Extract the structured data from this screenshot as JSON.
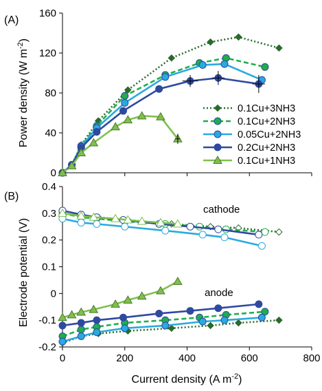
{
  "colors": {
    "s1": "#2a6a2c",
    "s2": "#1fae4b",
    "s3": "#29a9e0",
    "s4": "#2e4aa0",
    "s5": "#7fbf4d"
  },
  "chart_data": [
    {
      "type": "line",
      "panel_label": "(A)",
      "ylabel": "Power density (W m-2)",
      "ylabel_main": "Power density (W m",
      "ylabel_sup": "-2",
      "ylabel_close": ")",
      "xlim": [
        0,
        800
      ],
      "ylim": [
        0,
        160
      ],
      "yticks": [
        0,
        40,
        80,
        120,
        160
      ],
      "legend": {
        "placement": "bottom-right"
      },
      "series": [
        {
          "name": "0.1Cu+3NH3",
          "color_key": "s1",
          "marker": "diamond",
          "line": "dotted",
          "x": [
            0,
            30,
            60,
            115,
            210,
            350,
            475,
            565,
            695
          ],
          "y": [
            0,
            8,
            28,
            52,
            83,
            115,
            131,
            136,
            125
          ]
        },
        {
          "name": "0.1Cu+2NH3",
          "color_key": "s2",
          "marker": "circle",
          "line": "dashed",
          "x": [
            0,
            30,
            60,
            110,
            200,
            330,
            440,
            525,
            650
          ],
          "y": [
            0,
            8,
            27,
            47,
            77,
            98,
            110,
            115,
            106
          ]
        },
        {
          "name": "0.05Cu+2NH3",
          "color_key": "s3",
          "marker": "circle",
          "line": "solid",
          "x": [
            0,
            30,
            60,
            110,
            200,
            330,
            450,
            520,
            640
          ],
          "y": [
            0,
            8,
            26,
            45,
            70,
            96,
            108,
            109,
            93
          ]
        },
        {
          "name": "0.2Cu+2NH3",
          "color_key": "s4",
          "marker": "circle",
          "line": "solid",
          "x": [
            0,
            30,
            60,
            110,
            195,
            310,
            410,
            500,
            630
          ],
          "y": [
            0,
            8,
            25,
            41,
            62,
            84,
            92,
            95,
            89
          ]
        },
        {
          "name": "0.1Cu+1NH3",
          "color_key": "s5",
          "marker": "triangle",
          "line": "solid",
          "x": [
            0,
            30,
            60,
            100,
            170,
            210,
            255,
            315,
            370
          ],
          "y": [
            0,
            7,
            20,
            30,
            46,
            53,
            57,
            56,
            34
          ]
        }
      ]
    },
    {
      "type": "line",
      "panel_label": "(B)",
      "ylabel": "Electrode potential (V)",
      "xlabel": "Current density (A m-2)",
      "xlabel_main": "Current density (A m",
      "xlabel_sup": "-2",
      "xlabel_close": ")",
      "xlim": [
        0,
        800
      ],
      "ylim": [
        -0.2,
        0.4
      ],
      "xticks": [
        0,
        200,
        400,
        600,
        800
      ],
      "yticks": [
        -0.2,
        -0.1,
        0,
        0.1,
        0.2,
        0.3,
        0.4
      ],
      "ytick_labels": [
        "-0.2",
        "-0.1",
        "0",
        "0.1",
        "0.2",
        "0.3",
        "0.4"
      ],
      "annotations": {
        "cathode": "cathode",
        "anode": "anode"
      },
      "cathode_series": [
        {
          "color_key": "s1",
          "marker": "diamond",
          "line": "dotted",
          "x": [
            0,
            60,
            115,
            210,
            350,
            475,
            565,
            695
          ],
          "y": [
            0.3,
            0.29,
            0.285,
            0.275,
            0.26,
            0.25,
            0.245,
            0.23
          ]
        },
        {
          "color_key": "s2",
          "marker": "circle",
          "line": "dashed",
          "x": [
            0,
            60,
            110,
            200,
            330,
            440,
            525,
            650
          ],
          "y": [
            0.3,
            0.285,
            0.28,
            0.27,
            0.26,
            0.25,
            0.24,
            0.23
          ]
        },
        {
          "color_key": "s3",
          "marker": "circle",
          "line": "solid",
          "x": [
            0,
            60,
            110,
            200,
            330,
            450,
            520,
            640
          ],
          "y": [
            0.28,
            0.265,
            0.26,
            0.25,
            0.235,
            0.22,
            0.21,
            0.178
          ]
        },
        {
          "color_key": "s4",
          "marker": "circle",
          "line": "solid",
          "x": [
            0,
            60,
            110,
            195,
            310,
            410,
            500,
            630
          ],
          "y": [
            0.31,
            0.295,
            0.285,
            0.275,
            0.26,
            0.25,
            0.24,
            0.22
          ]
        },
        {
          "color_key": "s5",
          "marker": "triangle",
          "line": "solid",
          "x": [
            0,
            60,
            100,
            170,
            210,
            255,
            315,
            370
          ],
          "y": [
            0.3,
            0.29,
            0.285,
            0.28,
            0.275,
            0.27,
            0.265,
            0.26
          ]
        }
      ],
      "anode_series": [
        {
          "color_key": "s1",
          "marker": "diamond",
          "line": "dotted",
          "x": [
            0,
            60,
            115,
            210,
            350,
            475,
            565,
            695
          ],
          "y": [
            -0.185,
            -0.16,
            -0.15,
            -0.14,
            -0.13,
            -0.12,
            -0.11,
            -0.1
          ]
        },
        {
          "color_key": "s2",
          "marker": "circle",
          "line": "dashed",
          "x": [
            0,
            60,
            110,
            200,
            330,
            440,
            525,
            650
          ],
          "y": [
            -0.16,
            -0.135,
            -0.125,
            -0.11,
            -0.1,
            -0.09,
            -0.08,
            -0.068
          ]
        },
        {
          "color_key": "s3",
          "marker": "circle",
          "line": "solid",
          "x": [
            0,
            60,
            110,
            200,
            330,
            450,
            520,
            640
          ],
          "y": [
            -0.18,
            -0.16,
            -0.145,
            -0.13,
            -0.12,
            -0.105,
            -0.1,
            -0.09
          ]
        },
        {
          "color_key": "s4",
          "marker": "circle",
          "line": "solid",
          "x": [
            0,
            60,
            110,
            195,
            310,
            410,
            500,
            630
          ],
          "y": [
            -0.12,
            -0.11,
            -0.1,
            -0.09,
            -0.075,
            -0.065,
            -0.055,
            -0.04
          ]
        },
        {
          "color_key": "s5",
          "marker": "triangle",
          "line": "solid",
          "x": [
            0,
            30,
            60,
            100,
            170,
            210,
            255,
            315,
            370
          ],
          "y": [
            -0.09,
            -0.08,
            -0.07,
            -0.06,
            -0.04,
            -0.025,
            -0.01,
            0.01,
            0.045
          ]
        }
      ]
    }
  ]
}
